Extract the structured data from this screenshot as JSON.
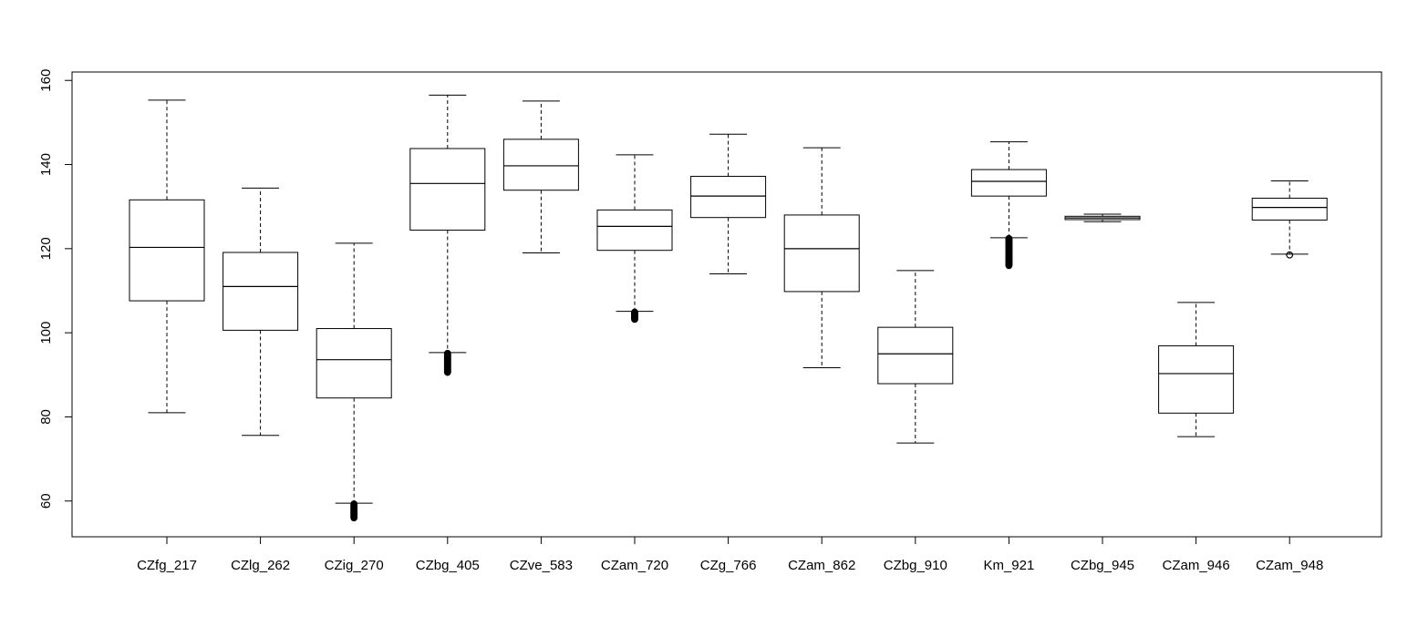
{
  "chart_data": {
    "type": "boxplot",
    "title": "",
    "xlabel": "",
    "ylabel": "",
    "ylim": [
      51.5,
      162
    ],
    "yticks": [
      "60",
      "80",
      "100",
      "120",
      "140",
      "160"
    ],
    "grid": false,
    "legend": "none",
    "categories": [
      "CZfg_217",
      "CZlg_262",
      "CZig_270",
      "CZbg_405",
      "CZve_583",
      "CZam_720",
      "CZg_766",
      "CZam_862",
      "CZbg_910",
      "Km_921",
      "CZbg_945",
      "CZam_946",
      "CZam_948"
    ],
    "boxes": [
      {
        "name": "CZfg_217",
        "whisker_low": 81.0,
        "q1": 107.6,
        "median": 120.3,
        "q3": 131.6,
        "whisker_high": 155.3,
        "outliers_low": [],
        "outliers_high": []
      },
      {
        "name": "CZlg_262",
        "whisker_low": 75.6,
        "q1": 100.6,
        "median": 111.0,
        "q3": 119.1,
        "whisker_high": 134.4,
        "outliers_low": [],
        "outliers_high": []
      },
      {
        "name": "CZig_270",
        "whisker_low": 59.5,
        "q1": 84.5,
        "median": 93.6,
        "q3": 101.0,
        "whisker_high": 121.3,
        "outliers_low": [
          56,
          59.3
        ],
        "outliers_high": []
      },
      {
        "name": "CZbg_405",
        "whisker_low": 95.3,
        "q1": 124.4,
        "median": 135.5,
        "q3": 143.8,
        "whisker_high": 156.5,
        "outliers_low": [
          90.6,
          95.1
        ],
        "outliers_high": []
      },
      {
        "name": "CZve_583",
        "whisker_low": 119.0,
        "q1": 133.9,
        "median": 139.7,
        "q3": 146.0,
        "whisker_high": 155.1,
        "outliers_low": [],
        "outliers_high": []
      },
      {
        "name": "CZam_720",
        "whisker_low": 105.1,
        "q1": 119.6,
        "median": 125.3,
        "q3": 129.2,
        "whisker_high": 142.3,
        "outliers_low": [
          103.2,
          104.9
        ],
        "outliers_high": []
      },
      {
        "name": "CZg_766",
        "whisker_low": 114.0,
        "q1": 127.4,
        "median": 132.5,
        "q3": 137.2,
        "whisker_high": 147.2,
        "outliers_low": [],
        "outliers_high": []
      },
      {
        "name": "CZam_862",
        "whisker_low": 91.7,
        "q1": 109.8,
        "median": 120.0,
        "q3": 128.0,
        "whisker_high": 144.0,
        "outliers_low": [],
        "outliers_high": []
      },
      {
        "name": "CZbg_910",
        "whisker_low": 73.8,
        "q1": 87.9,
        "median": 95.0,
        "q3": 101.3,
        "whisker_high": 114.8,
        "outliers_low": [],
        "outliers_high": []
      },
      {
        "name": "Km_921",
        "whisker_low": 122.6,
        "q1": 132.5,
        "median": 136.0,
        "q3": 138.8,
        "whisker_high": 145.4,
        "outliers_low": [
          116,
          122.4
        ],
        "outliers_high": []
      },
      {
        "name": "CZbg_945",
        "whisker_low": 126.4,
        "q1": 126.9,
        "median": 127.3,
        "q3": 127.7,
        "whisker_high": 128.2,
        "outliers_low": [],
        "outliers_high": []
      },
      {
        "name": "CZam_946",
        "whisker_low": 75.3,
        "q1": 80.9,
        "median": 90.3,
        "q3": 96.9,
        "whisker_high": 107.2,
        "outliers_low": [],
        "outliers_high": []
      },
      {
        "name": "CZam_948",
        "whisker_low": 118.7,
        "q1": 126.8,
        "median": 129.8,
        "q3": 132.0,
        "whisker_high": 136.1,
        "outliers_low": [
          118.5
        ],
        "outliers_high": []
      }
    ]
  }
}
